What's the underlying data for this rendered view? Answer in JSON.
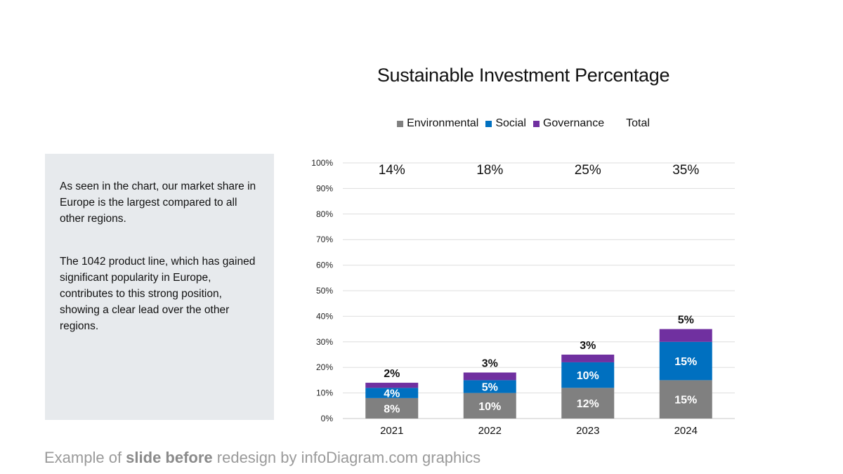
{
  "footer": {
    "prefix": "Example of ",
    "emphasis": "slide before",
    "suffix": " redesign by infoDiagram.com graphics"
  },
  "panel": {
    "paragraphs": [
      "As seen in the chart, our market share in Europe is the largest compared to all other regions.",
      "The 1042 product line, which has gained significant popularity in Europe, contributes to this strong position, showing a clear lead over the other regions."
    ]
  },
  "chart_data": {
    "type": "bar",
    "stacked": true,
    "title": "Sustainable Investment Percentage",
    "xlabel": "",
    "ylabel": "",
    "categories": [
      "2021",
      "2022",
      "2023",
      "2024"
    ],
    "series": [
      {
        "name": "Environmental",
        "color": "#808080",
        "values": [
          8,
          10,
          12,
          15
        ],
        "labels": [
          "8%",
          "10%",
          "12%",
          "15%"
        ]
      },
      {
        "name": "Social",
        "color": "#0070c0",
        "values": [
          4,
          5,
          10,
          15
        ],
        "labels": [
          "4%",
          "5%",
          "10%",
          "15%"
        ]
      },
      {
        "name": "Governance",
        "color": "#7030a0",
        "values": [
          2,
          3,
          3,
          5
        ],
        "labels": [
          "2%",
          "3%",
          "3%",
          "5%"
        ]
      }
    ],
    "totals": {
      "name": "Total",
      "labels": [
        "14%",
        "18%",
        "25%",
        "35%"
      ]
    },
    "ylim": [
      0,
      100
    ],
    "yticks": [
      0,
      10,
      20,
      30,
      40,
      50,
      60,
      70,
      80,
      90,
      100
    ],
    "ytick_labels": [
      "0%",
      "10%",
      "20%",
      "30%",
      "40%",
      "50%",
      "60%",
      "70%",
      "80%",
      "90%",
      "100%"
    ],
    "grid": true,
    "legend_position": "top"
  }
}
